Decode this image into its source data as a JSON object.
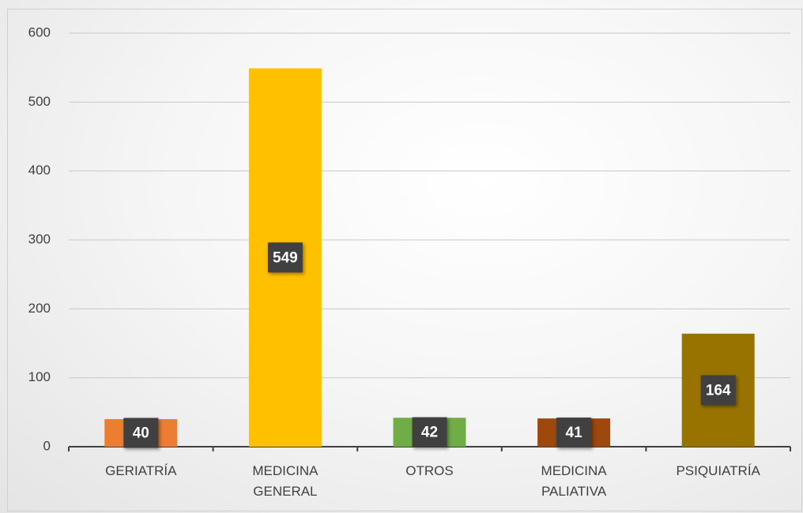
{
  "chart_data": {
    "type": "bar",
    "categories": [
      "GERIATRÍA",
      "MEDICINA GENERAL",
      "OTROS",
      "MEDICINA PALIATIVA",
      "PSIQUIATRÍA"
    ],
    "values": [
      40,
      549,
      42,
      41,
      164
    ],
    "colors": [
      "#ed7d31",
      "#ffc000",
      "#70ad47",
      "#9e480e",
      "#997300"
    ],
    "ylim": [
      0,
      600
    ],
    "yticks": [
      0,
      100,
      200,
      300,
      400,
      500,
      600
    ],
    "grid": true
  }
}
